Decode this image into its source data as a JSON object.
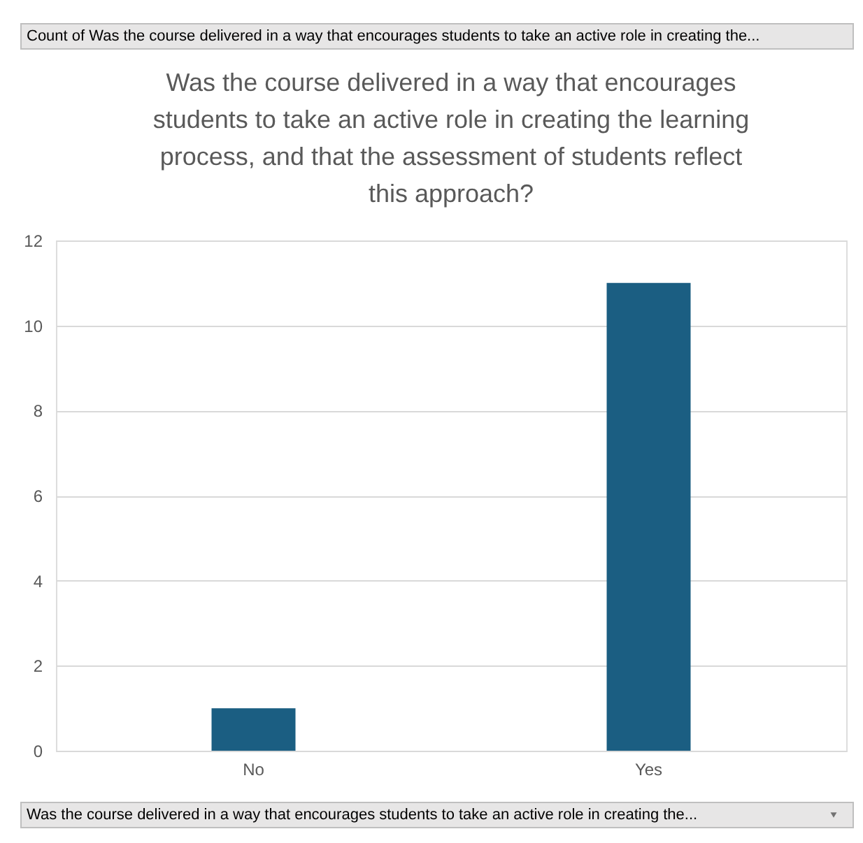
{
  "chart_data": {
    "type": "bar",
    "title": "Was the course delivered in a way that encourages students to take an active role in creating the learning process, and that the assessment of students reflect this approach?",
    "categories": [
      "No",
      "Yes"
    ],
    "values": [
      1,
      11
    ],
    "color": "#1b5e82",
    "ylim": [
      0,
      12
    ],
    "yticks": [
      0,
      2,
      4,
      6,
      8,
      10,
      12
    ],
    "grid": "y",
    "annotations": [
      "Count of Was the course delivered in a way that encourages students to take an active role in creating the...",
      "Was the course delivered in a way that encourages students to take an active role in creating the..."
    ]
  }
}
